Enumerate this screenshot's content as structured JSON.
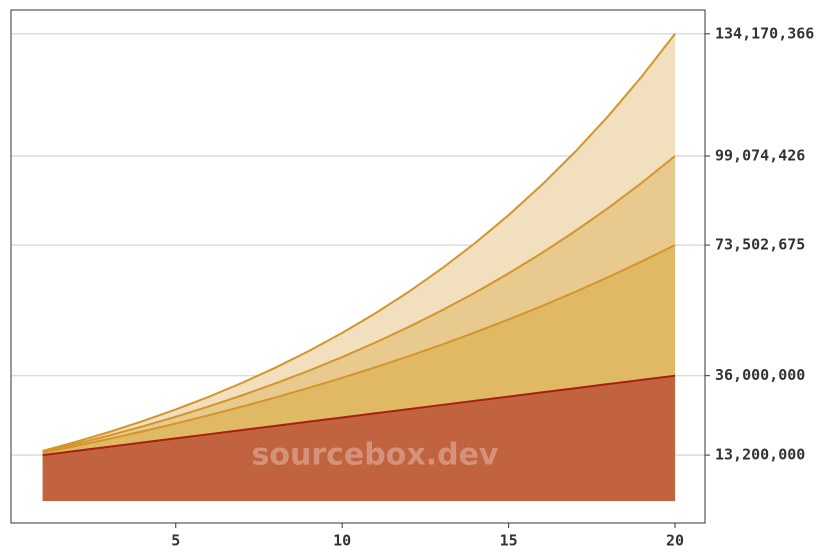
{
  "chart_data": {
    "type": "area",
    "watermark": "sourcebox.dev",
    "x": [
      1,
      2,
      3,
      4,
      5,
      6,
      7,
      8,
      9,
      10,
      11,
      12,
      13,
      14,
      15,
      16,
      17,
      18,
      19,
      20
    ],
    "series": [
      {
        "color": "#d4952a",
        "fill": "#f2dfbd",
        "values": [
          14388000,
          16991000,
          19828000,
          22921000,
          26292000,
          29966000,
          33971000,
          38336000,
          43094000,
          48281000,
          53934000,
          60096000,
          66813000,
          74134000,
          82114000,
          90812000,
          100293000,
          110628000,
          121892000,
          134170366
        ]
      },
      {
        "color": "#d4952a",
        "fill": "#e8c98e",
        "values": [
          14124000,
          16397000,
          18829000,
          21431000,
          24215000,
          27194000,
          30381000,
          33792000,
          37441000,
          41346000,
          45524000,
          49995000,
          54779000,
          59897000,
          65374000,
          71234000,
          77505000,
          84214000,
          91393000,
          99074426
        ]
      },
      {
        "color": "#d4952a",
        "fill": "#dfb964",
        "values": [
          13860000,
          15813000,
          17864000,
          20017000,
          22278000,
          24652000,
          27144000,
          29761000,
          32510000,
          35395000,
          38425000,
          41606000,
          44946000,
          48454000,
          52136000,
          56003000,
          60063000,
          64326000,
          68803000,
          73502675
        ]
      },
      {
        "color": "#a8200f",
        "fill": "#c26340",
        "values": [
          13200000,
          14400000,
          15600000,
          16800000,
          18000000,
          19200000,
          20400000,
          21600000,
          22800000,
          24000000,
          25200000,
          26400000,
          27600000,
          28800000,
          30000000,
          31200000,
          32400000,
          33600000,
          34800000,
          36000000
        ]
      }
    ],
    "xlim": [
      0.05,
      20.9
    ],
    "xticks": [
      5,
      10,
      15,
      20
    ],
    "ylim": [
      -6300000,
      141000000
    ],
    "yticks": [
      {
        "value": 13200000,
        "label": "13,200,000"
      },
      {
        "value": 36000000,
        "label": "36,000,000"
      },
      {
        "value": 73502675,
        "label": "73,502,675"
      },
      {
        "value": 99074426,
        "label": "99,074,426"
      },
      {
        "value": 134170366,
        "label": "134,170,366"
      }
    ],
    "y_axis_side": "right",
    "grid": true
  }
}
